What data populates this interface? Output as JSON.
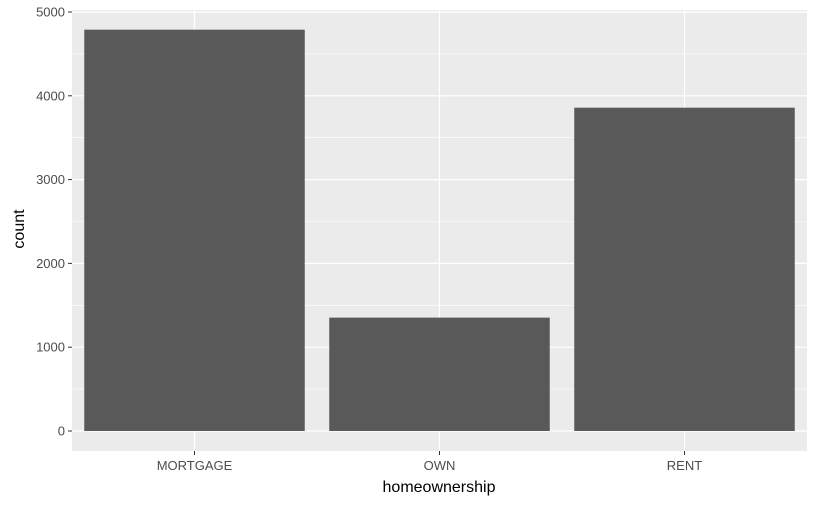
{
  "chart_data": {
    "type": "bar",
    "title": "",
    "xlabel": "homeownership",
    "ylabel": "count",
    "categories": [
      "MORTGAGE",
      "OWN",
      "RENT"
    ],
    "values": [
      4789,
      1353,
      3858
    ],
    "ylim": [
      0,
      5000
    ],
    "yticks": [
      0,
      1000,
      2000,
      3000,
      4000,
      5000
    ],
    "grid": true,
    "legend": "none",
    "colors": {
      "panel": "#ebebeb",
      "grid": "#ffffff",
      "bar": "#595959",
      "tick_text": "#4d4d4d"
    }
  }
}
